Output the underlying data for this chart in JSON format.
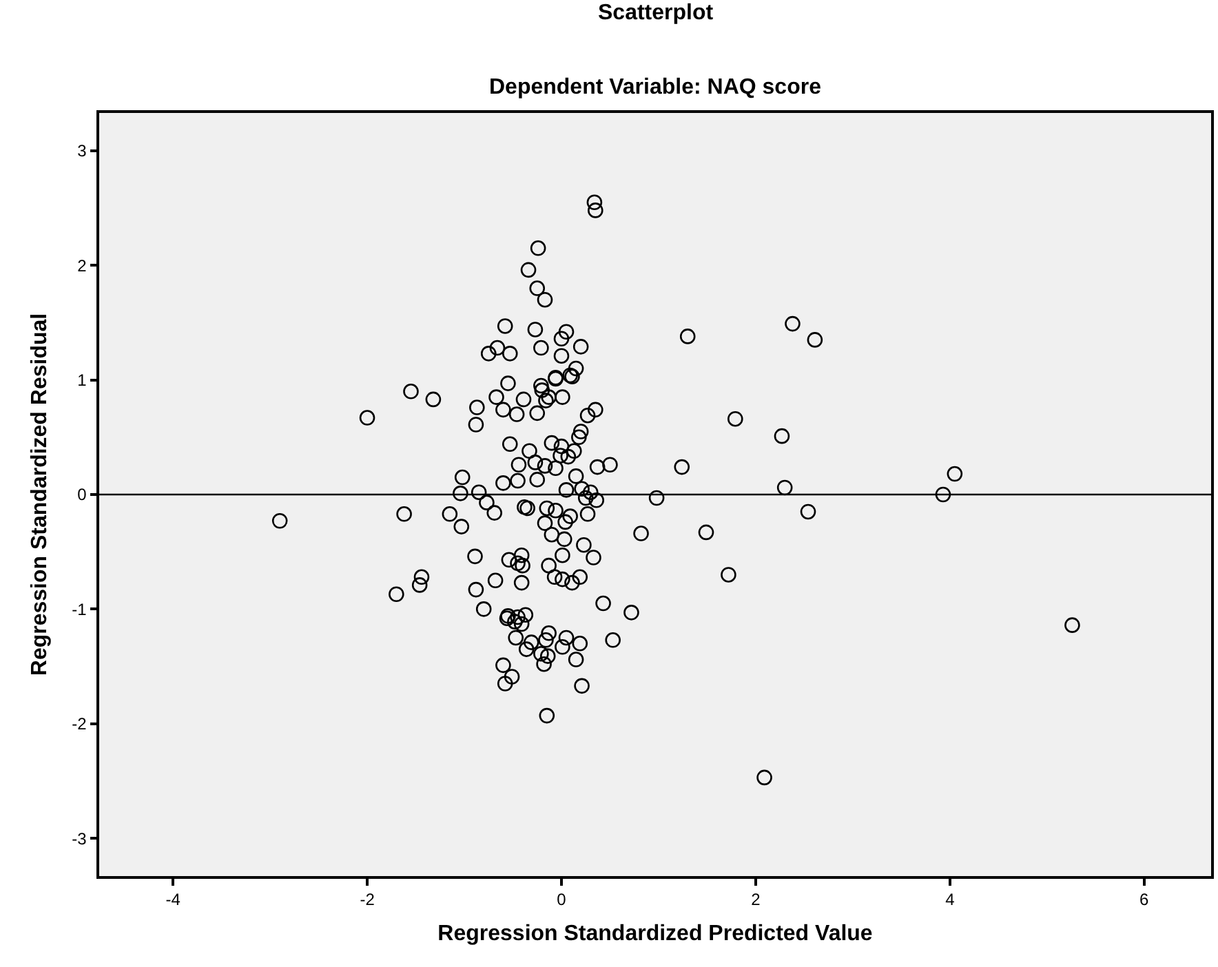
{
  "chart_data": {
    "type": "scatter",
    "title": "Scatterplot",
    "subtitle": "Dependent Variable: NAQ score",
    "xlabel": "Regression Standardized Predicted Value",
    "ylabel": "Regression Standardized Residual",
    "x": [
      0.34,
      0.35,
      -0.24,
      -0.34,
      -0.25,
      -0.17,
      -0.58,
      -0.27,
      0.05,
      0.0,
      0.2,
      -0.21,
      -0.66,
      -0.75,
      -0.53,
      0.0,
      0.15,
      0.09,
      -0.06,
      1.3,
      -1.55,
      -0.55,
      -0.21,
      -2.0,
      -1.32,
      -0.87,
      -0.88,
      -0.67,
      -0.6,
      -0.46,
      -0.39,
      -0.25,
      -0.2,
      -0.16,
      -0.13,
      0.01,
      -0.06,
      0.11,
      0.35,
      0.27,
      0.2,
      0.18,
      -0.53,
      -0.1,
      0.0,
      0.13,
      -0.33,
      -0.01,
      0.07,
      -0.44,
      -0.27,
      -0.17,
      -0.06,
      0.37,
      0.5,
      1.24,
      0.15,
      -1.02,
      -0.6,
      -0.45,
      -0.25,
      -1.04,
      -0.85,
      0.05,
      0.21,
      0.3,
      0.25,
      0.36,
      0.98,
      -0.77,
      -0.69,
      -1.62,
      -1.15,
      -1.03,
      -0.38,
      -0.35,
      -0.15,
      -0.06,
      0.27,
      0.09,
      0.04,
      -0.17,
      -0.1,
      0.03,
      0.82,
      0.23,
      0.01,
      0.33,
      -0.89,
      -0.54,
      -0.41,
      -0.45,
      -0.4,
      -0.13,
      -0.07,
      0.01,
      0.11,
      0.19,
      -0.41,
      -0.68,
      -1.44,
      -1.46,
      -1.7,
      -0.88,
      -0.8,
      0.43,
      0.72,
      -0.55,
      -0.45,
      -0.37,
      -0.56,
      -0.48,
      -0.41,
      -0.47,
      -0.31,
      -0.36,
      -0.13,
      -0.16,
      0.05,
      0.01,
      0.19,
      0.53,
      -0.21,
      -0.14,
      -0.18,
      0.15,
      -0.6,
      -0.51,
      -0.58,
      0.21,
      -0.15,
      2.38,
      2.61,
      1.79,
      2.27,
      2.3,
      4.05,
      3.93,
      2.54,
      1.49,
      1.72,
      5.26,
      2.09,
      -2.9
    ],
    "values": [
      2.55,
      2.48,
      2.15,
      1.96,
      1.8,
      1.7,
      1.47,
      1.44,
      1.42,
      1.36,
      1.29,
      1.28,
      1.28,
      1.23,
      1.23,
      1.21,
      1.1,
      1.04,
      1.02,
      1.38,
      0.9,
      0.97,
      0.95,
      0.67,
      0.83,
      0.76,
      0.61,
      0.85,
      0.74,
      0.7,
      0.83,
      0.71,
      0.91,
      0.82,
      0.85,
      0.85,
      1.01,
      1.03,
      0.74,
      0.69,
      0.55,
      0.5,
      0.44,
      0.45,
      0.42,
      0.38,
      0.38,
      0.34,
      0.33,
      0.26,
      0.28,
      0.25,
      0.23,
      0.24,
      0.26,
      0.24,
      0.16,
      0.15,
      0.1,
      0.12,
      0.13,
      0.01,
      0.02,
      0.04,
      0.05,
      0.02,
      -0.03,
      -0.05,
      -0.03,
      -0.07,
      -0.16,
      -0.17,
      -0.17,
      -0.28,
      -0.11,
      -0.12,
      -0.12,
      -0.14,
      -0.17,
      -0.19,
      -0.24,
      -0.25,
      -0.35,
      -0.39,
      -0.34,
      -0.44,
      -0.53,
      -0.55,
      -0.54,
      -0.57,
      -0.53,
      -0.6,
      -0.62,
      -0.62,
      -0.72,
      -0.74,
      -0.77,
      -0.72,
      -0.77,
      -0.75,
      -0.72,
      -0.79,
      -0.87,
      -0.83,
      -1.0,
      -0.95,
      -1.03,
      -1.06,
      -1.07,
      -1.05,
      -1.08,
      -1.11,
      -1.13,
      -1.25,
      -1.29,
      -1.35,
      -1.21,
      -1.27,
      -1.25,
      -1.33,
      -1.3,
      -1.27,
      -1.39,
      -1.41,
      -1.48,
      -1.44,
      -1.49,
      -1.59,
      -1.65,
      -1.67,
      -1.93,
      1.49,
      1.35,
      0.66,
      0.51,
      0.06,
      0.18,
      0.0,
      -0.15,
      -0.33,
      -0.7,
      -1.14,
      -2.47,
      -0.23
    ],
    "color": "#000000",
    "marker": "circle",
    "xlim": [
      -4.76,
      6.69
    ],
    "xticks": [
      -4,
      -2,
      0,
      2,
      4,
      6
    ],
    "ylim": [
      -3.33,
      3.33
    ],
    "yticks": [
      -3,
      -2,
      -1,
      0,
      1,
      2,
      3
    ],
    "ref_lines": [
      {
        "axis": "y",
        "value": 0,
        "color": "#000000"
      }
    ],
    "grid": false,
    "legend": false
  }
}
